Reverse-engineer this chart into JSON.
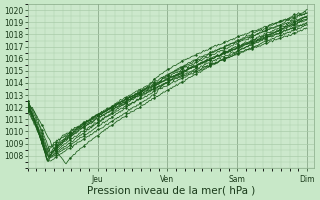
{
  "xlabel": "Pression niveau de la mer( hPa )",
  "bg_color": "#c8e8c8",
  "plot_bg_color": "#cce8cc",
  "grid_color": "#aaccaa",
  "line_color": "#1a5c1a",
  "ylim": [
    1007.0,
    1020.5
  ],
  "yticks": [
    1008,
    1009,
    1010,
    1011,
    1012,
    1013,
    1014,
    1015,
    1016,
    1017,
    1018,
    1019,
    1020
  ],
  "xlim": [
    0.0,
    4.1
  ],
  "day_positions": [
    1.0,
    2.0,
    3.0,
    4.0
  ],
  "day_labels": [
    "Jeu",
    "Ven",
    "Sam",
    "Dim"
  ],
  "tick_font_size": 5.5,
  "xlabel_font_size": 7.5
}
